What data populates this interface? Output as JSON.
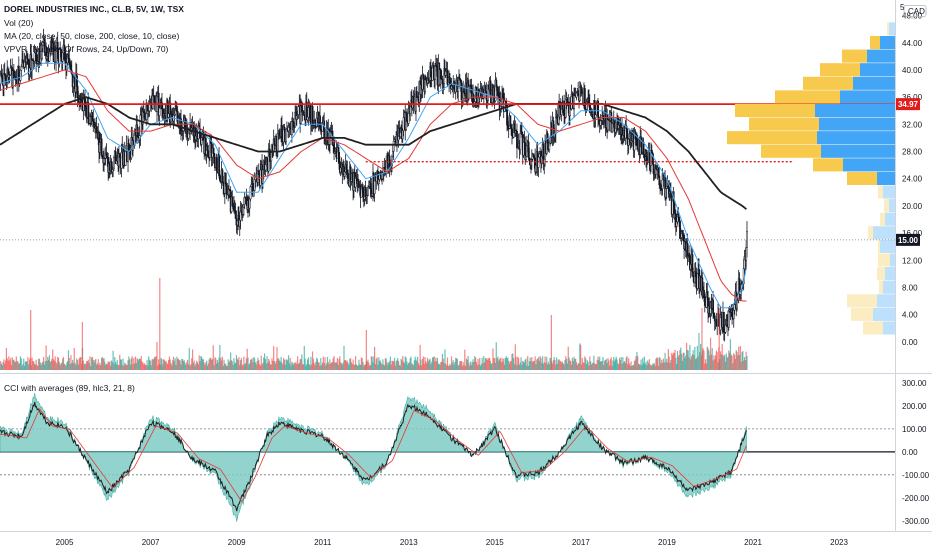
{
  "header": {
    "title": "DOREL INDUSTRIES INC., CL.B, 5V, 1W, TSX",
    "vol_label": "Vol (20)",
    "ma_label": "MA (20, close, 50, close, 200, close, 10, close)",
    "vpvr_label": "VPVR (Number Of Rows, 24, Up/Down, 70)",
    "cci_label": "CCI with averages (89, hlc3, 21, 8)"
  },
  "price_axis": {
    "currency": "CAD",
    "top_value": "5",
    "ticks": [
      "48.00",
      "44.00",
      "40.00",
      "36.00",
      "32.00",
      "28.00",
      "24.00",
      "20.00",
      "16.00",
      "12.00",
      "8.00",
      "4.00",
      "0.00"
    ],
    "min": -1.5,
    "max": 50
  },
  "cci_axis": {
    "ticks": [
      "300.00",
      "200.00",
      "100.00",
      "0.00",
      "-100.00",
      "-200.00",
      "-300.00"
    ],
    "min": -340,
    "max": 330
  },
  "time_axis": {
    "ticks": [
      "2005",
      "2007",
      "2009",
      "2011",
      "2013",
      "2015",
      "2017",
      "2019",
      "2021",
      "2023"
    ],
    "start_year": 2003.5,
    "end_year": 2024.3
  },
  "badges": {
    "resistance": "34.97",
    "last_price": "15.00"
  },
  "colors": {
    "up": "#26a69a",
    "down": "#ef5350",
    "candle": "#131722",
    "ma_fast": "#42a5f5",
    "ma_mid": "#e53935",
    "ma_slow": "#212121",
    "resistance_line": "#e31b1b",
    "support_dotted": "#e31b1b",
    "vpvr_up": "#f7c94c",
    "vpvr_down": "#42a5f5",
    "cci_fill": "#80cbc4",
    "cci_line": "#212121",
    "cci_avg": "#e53935"
  },
  "chart_data": {
    "type": "line",
    "title": "DOREL INDUSTRIES INC., CL.B, 5V, 1W, TSX",
    "x": [
      2003.5,
      2004.0,
      2004.5,
      2005.0,
      2005.5,
      2006.0,
      2006.5,
      2007.0,
      2007.5,
      2008.0,
      2008.5,
      2009.0,
      2009.5,
      2010.0,
      2010.5,
      2011.0,
      2011.5,
      2012.0,
      2012.5,
      2013.0,
      2013.5,
      2014.0,
      2014.5,
      2015.0,
      2015.5,
      2016.0,
      2016.5,
      2017.0,
      2017.5,
      2018.0,
      2018.5,
      2019.0,
      2019.5,
      2020.0,
      2020.25,
      2020.5,
      2020.75,
      2020.85
    ],
    "series": [
      {
        "name": "close",
        "values": [
          38,
          40,
          43,
          42,
          34,
          26,
          28,
          36,
          33,
          31,
          27,
          18,
          24,
          30,
          34,
          32,
          25,
          22,
          26,
          34,
          40,
          38,
          36,
          37,
          30,
          26,
          34,
          36,
          33,
          31,
          28,
          22,
          12,
          5,
          2.5,
          4,
          10,
          15
        ]
      },
      {
        "name": "MA 20",
        "values": [
          38,
          39,
          41,
          41,
          37,
          30,
          28,
          32,
          33,
          32,
          29,
          22,
          22,
          27,
          32,
          32,
          28,
          24,
          25,
          30,
          36,
          38,
          37,
          36,
          33,
          29,
          31,
          34,
          34,
          32,
          29,
          24,
          15,
          8,
          5,
          5,
          8,
          11
        ]
      },
      {
        "name": "MA 50",
        "values": [
          37,
          38,
          39,
          40,
          39,
          34,
          31,
          31,
          32,
          32,
          30,
          26,
          24,
          25,
          28,
          30,
          29,
          27,
          25,
          27,
          32,
          35,
          36,
          36,
          35,
          32,
          31,
          32,
          33,
          33,
          31,
          27,
          21,
          13,
          9,
          7,
          6,
          6
        ]
      },
      {
        "name": "MA 200",
        "values": [
          29,
          31,
          33,
          35,
          36,
          35,
          33,
          32,
          32,
          31,
          30,
          29,
          28,
          28,
          29,
          30,
          30,
          29,
          29,
          29,
          31,
          32,
          33,
          34,
          35,
          35,
          35,
          35,
          35,
          34,
          33,
          31,
          28,
          24,
          22,
          21,
          20,
          19.5
        ]
      }
    ],
    "volume_vpvr": {
      "price_levels": [
        46,
        44,
        42,
        40,
        38,
        36,
        34,
        32,
        30,
        28,
        26,
        24,
        22,
        20,
        18,
        16,
        14,
        12,
        10,
        8,
        6,
        4,
        2
      ],
      "up_volume": [
        0.2,
        1,
        2.5,
        4,
        5,
        6.5,
        8,
        7,
        9,
        6,
        3,
        3,
        0.5,
        0.5,
        0.5,
        0.5,
        0.2,
        1.2,
        0.8,
        0.4,
        3,
        2.2,
        2
      ],
      "down_volume": [
        0.6,
        1.5,
        2.8,
        3.5,
        4.2,
        5.5,
        8,
        7.6,
        7.8,
        7.4,
        5.2,
        1.8,
        1.2,
        0.6,
        1,
        2.2,
        1.5,
        0.5,
        1,
        1.2,
        1.8,
        2.2,
        1.2
      ]
    },
    "cci": {
      "x": [
        2003.5,
        2004.0,
        2004.3,
        2004.6,
        2005.0,
        2005.5,
        2006.0,
        2006.5,
        2007.0,
        2007.5,
        2008.0,
        2008.5,
        2009.0,
        2009.3,
        2009.7,
        2010.0,
        2010.5,
        2011.0,
        2011.5,
        2012.0,
        2012.5,
        2013.0,
        2013.5,
        2014.0,
        2014.5,
        2015.0,
        2015.5,
        2016.0,
        2016.5,
        2017.0,
        2017.5,
        2018.0,
        2018.5,
        2019.0,
        2019.5,
        2020.0,
        2020.5,
        2020.85
      ],
      "values": [
        100,
        80,
        250,
        150,
        130,
        -40,
        -210,
        -90,
        150,
        110,
        -40,
        -100,
        -290,
        -150,
        80,
        150,
        110,
        80,
        -20,
        -150,
        -50,
        240,
        180,
        70,
        -20,
        120,
        -120,
        -110,
        0,
        150,
        20,
        -60,
        -30,
        -80,
        -200,
        -160,
        -100,
        110
      ]
    },
    "resistance": 34.97,
    "support": 26.5,
    "last_price": 15.0,
    "ylim": [
      0,
      48
    ],
    "xlabel": "",
    "ylabel": ""
  }
}
